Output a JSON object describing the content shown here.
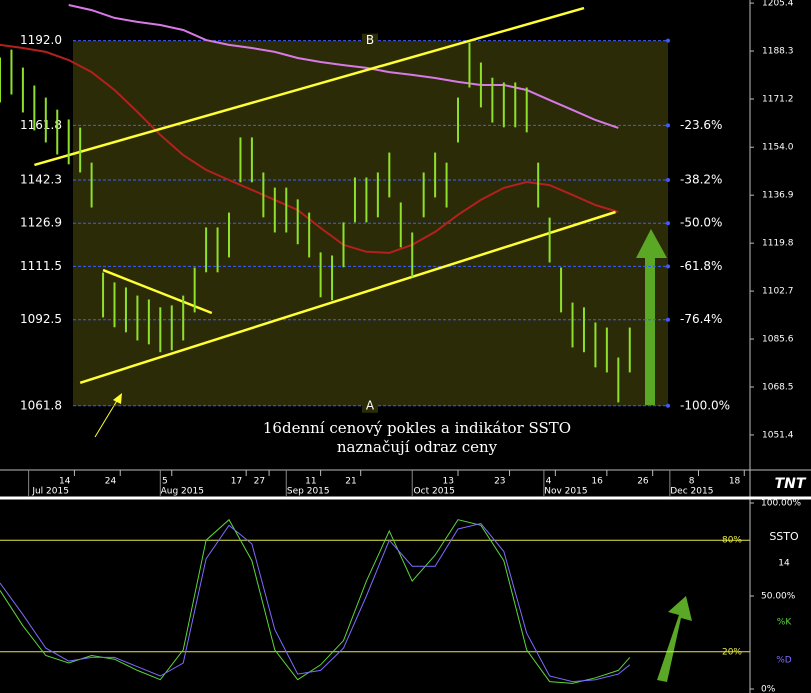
{
  "chart_data": [
    {
      "type": "ohlc",
      "xlim": [
        0,
        131
      ],
      "ylim": [
        1038.9,
        1206.5
      ],
      "yticks": [
        1205.4,
        1188.3,
        1171.2,
        {
          "value": 1154.0,
          "label": "1154.0"
        },
        1136.9,
        1119.8,
        1102.7,
        1085.6,
        1068.5,
        1051.4
      ],
      "xticks": [
        {
          "value": 13,
          "label": "14"
        },
        {
          "value": 21,
          "label": "24"
        },
        {
          "value": 30,
          "label": "5"
        },
        {
          "value": 43,
          "label": "17"
        },
        {
          "value": 47,
          "label": "27"
        },
        {
          "value": 56,
          "label": "11"
        },
        {
          "value": 63,
          "label": "21"
        },
        {
          "value": 80,
          "label": "13"
        },
        {
          "value": 89,
          "label": "23"
        },
        {
          "value": 97,
          "label": "4"
        },
        {
          "value": 106,
          "label": "16"
        },
        {
          "value": 114,
          "label": "26"
        },
        {
          "value": 122,
          "label": "8"
        },
        {
          "value": 130,
          "label": "18"
        }
      ],
      "month_ticks": [
        {
          "value": 5,
          "label": "Jul 2015"
        },
        {
          "value": 28,
          "label": "Aug 2015"
        },
        {
          "value": 50,
          "label": "Sep 2015"
        },
        {
          "value": 72,
          "label": "Oct 2015"
        },
        {
          "value": 95,
          "label": "Nov 2015"
        },
        {
          "value": 117,
          "label": "Dec 2015"
        }
      ],
      "bar_color": "#8fe02a",
      "x": [
        0,
        2,
        4,
        6,
        8,
        10,
        12,
        14,
        16,
        18,
        20,
        22,
        24,
        26,
        28,
        30,
        32,
        34,
        36,
        38,
        40,
        42,
        44,
        46,
        48,
        50,
        52,
        54,
        56,
        58,
        60,
        62,
        64,
        66,
        68,
        70,
        72,
        74,
        76,
        78,
        80,
        82,
        84,
        86,
        88,
        90,
        92,
        94,
        96,
        98,
        100,
        102,
        104,
        106,
        108,
        110
      ],
      "high": [
        1186.0,
        1188.8,
        1182.4,
        1176.0,
        1171.7,
        1167.4,
        1163.9,
        1161.0,
        1148.5,
        1109.3,
        1105.8,
        1104.0,
        1101.1,
        1099.7,
        1096.9,
        1097.6,
        1101.1,
        1111.1,
        1125.4,
        1125.4,
        1130.7,
        1157.5,
        1157.5,
        1145.0,
        1139.6,
        1139.6,
        1135.4,
        1130.7,
        1116.5,
        1115.4,
        1127.2,
        1143.2,
        1143.2,
        1145.0,
        1152.1,
        1134.3,
        1123.6,
        1145.0,
        1152.1,
        1148.5,
        1171.7,
        1191.3,
        1184.2,
        1178.8,
        1177.1,
        1177.1,
        1175.3,
        1148.5,
        1128.9,
        1111.1,
        1098.6,
        1096.9,
        1091.5,
        1089.7,
        1079.0,
        1089.7
      ],
      "low": [
        1170.0,
        1172.8,
        1166.4,
        1160.0,
        1155.7,
        1151.4,
        1147.9,
        1145.0,
        1132.5,
        1093.3,
        1089.8,
        1088.0,
        1085.1,
        1083.7,
        1080.9,
        1081.6,
        1085.1,
        1095.1,
        1109.4,
        1109.4,
        1114.7,
        1141.5,
        1141.5,
        1129.0,
        1123.6,
        1123.6,
        1119.4,
        1114.7,
        1100.5,
        1099.4,
        1111.2,
        1127.2,
        1127.2,
        1129.0,
        1136.1,
        1118.3,
        1107.6,
        1129.0,
        1136.1,
        1132.5,
        1155.7,
        1175.3,
        1168.2,
        1162.8,
        1161.1,
        1161.1,
        1159.3,
        1132.5,
        1112.9,
        1095.1,
        1082.6,
        1080.9,
        1075.5,
        1073.7,
        1063.0,
        1073.7
      ],
      "series": [
        {
          "color": "#b3201e",
          "x": [
            0,
            4,
            8,
            12,
            16,
            20,
            24,
            28,
            32,
            36,
            40,
            44,
            48,
            52,
            56,
            60,
            64,
            68,
            72,
            76,
            80,
            84,
            88,
            92,
            96,
            100,
            104,
            108
          ],
          "values": [
            1190.5,
            1189.4,
            1188.0,
            1185.1,
            1180.8,
            1174.4,
            1166.6,
            1158.4,
            1151.2,
            1145.9,
            1142.3,
            1138.8,
            1135.2,
            1131.6,
            1125.2,
            1119.2,
            1116.7,
            1116.3,
            1119.2,
            1123.8,
            1129.9,
            1135.2,
            1139.5,
            1141.6,
            1140.5,
            1137.0,
            1133.4,
            1130.9
          ]
        },
        {
          "color": "#d77ae6",
          "x": [
            12,
            16,
            20,
            24,
            28,
            32,
            36,
            40,
            44,
            48,
            52,
            56,
            60,
            64,
            68,
            72,
            76,
            80,
            84,
            88,
            92,
            96,
            100,
            104,
            108
          ],
          "values": [
            1204.7,
            1202.9,
            1200.1,
            1198.7,
            1197.6,
            1195.8,
            1192.2,
            1190.5,
            1189.4,
            1188.0,
            1185.8,
            1184.4,
            1183.3,
            1182.3,
            1180.8,
            1179.8,
            1178.7,
            1177.3,
            1176.2,
            1176.2,
            1174.4,
            1170.8,
            1167.3,
            1163.7,
            1160.9
          ]
        },
        {
          "color": "#ffff33",
          "x": [
            6,
            102
          ],
          "values": [
            1147.7,
            1203.6
          ]
        },
        {
          "color": "#ffff33",
          "x": [
            14,
            107.5
          ],
          "values": [
            1070.0,
            1130.9
          ]
        },
        {
          "color": "#ffff33",
          "x": [
            18,
            37
          ],
          "values": [
            1110.2,
            1094.9
          ]
        }
      ],
      "fib_levels": [
        {
          "value": 1192.0,
          "label": "1192.0"
        },
        1161.8,
        1142.3,
        1126.9,
        1111.5,
        1092.5,
        1061.8
      ],
      "fib_percent_labels": [
        null,
        "-23.6%",
        "-38.2%",
        "-50.0%",
        "-61.8%",
        "-76.4%",
        "-100.0%"
      ],
      "top_label": "B",
      "bottom_label": "A",
      "annotation": [
        "16denní cenový pokles a indikátor SSTO",
        "naznačují odraz ceny"
      ],
      "logo": "TNT"
    },
    {
      "type": "stochastic",
      "title": "SSTO",
      "period": 14,
      "xlim": [
        0,
        131
      ],
      "ylim": [
        0,
        100
      ],
      "yticks": [
        {
          "value": 100,
          "label": "100.00%"
        },
        {
          "value": 50,
          "label": "50.00%"
        },
        {
          "value": 0,
          "label": "0%"
        }
      ],
      "levels": [
        {
          "value": 80,
          "label": "80%"
        },
        {
          "value": 20,
          "label": "20%"
        }
      ],
      "x": [
        0,
        4,
        8,
        12,
        16,
        20,
        24,
        28,
        32,
        36,
        40,
        44,
        48,
        52,
        56,
        60,
        64,
        68,
        72,
        76,
        80,
        84,
        88,
        92,
        96,
        100,
        104,
        108,
        110
      ],
      "series": [
        {
          "name": "%K",
          "color": "#5bd63a",
          "values": [
            53,
            34,
            18,
            14,
            18,
            16,
            10,
            5,
            21,
            80,
            91,
            69,
            21,
            5,
            13,
            26,
            58,
            85,
            58,
            72,
            91,
            88,
            69,
            21,
            4,
            3,
            6,
            10,
            17
          ]
        },
        {
          "name": "%D",
          "color": "#7d6cff",
          "values": [
            57,
            40,
            22,
            15,
            17,
            17,
            12,
            7,
            14,
            70,
            88,
            78,
            32,
            8,
            10,
            22,
            50,
            80,
            66,
            66,
            86,
            89,
            74,
            30,
            7,
            4,
            5,
            8,
            13
          ]
        }
      ]
    }
  ]
}
